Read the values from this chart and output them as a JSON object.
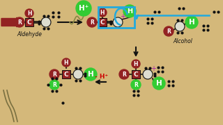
{
  "bg_color": "#d4b87a",
  "dark_red": "#922222",
  "green": "#33cc33",
  "white_circle": "#ddddd0",
  "black": "#111111",
  "red_text": "#cc0000",
  "blue_arrow": "#22aadd",
  "purple": "#aa22aa",
  "aldehyde_label": "Aldehyde",
  "alcohol_label": "Alcohol",
  "hplus_label": "H⁺",
  "minus_hplus_label": "- H⁺"
}
